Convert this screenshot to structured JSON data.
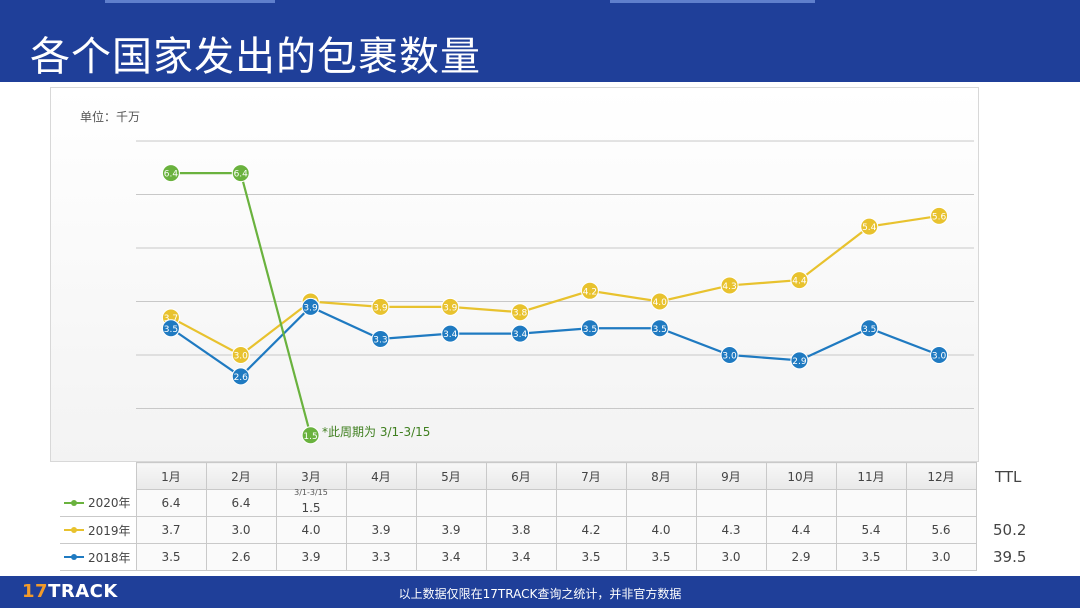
{
  "page": {
    "title": "各个国家发出的包裹数量",
    "unit_label": "单位：千万",
    "note": "*此周期为 3/1-3/15",
    "ttl_header": "TTL",
    "footer_text": "以上数据仅限在17TRACK查询之统计，并非官方数据",
    "logo_prefix": "17",
    "logo_suffix": "TRACK"
  },
  "chart_data": {
    "type": "line",
    "categories": [
      "1月",
      "2月",
      "3月",
      "4月",
      "5月",
      "6月",
      "7月",
      "8月",
      "9月",
      "10月",
      "11月",
      "12月"
    ],
    "ylim": [
      1.0,
      7.0
    ],
    "grid": true,
    "legend_placement": "table-left",
    "series": [
      {
        "name": "2020年",
        "color": "#6ab23e",
        "values": [
          6.4,
          6.4,
          1.5,
          null,
          null,
          null,
          null,
          null,
          null,
          null,
          null,
          null
        ],
        "labels": [
          "6.4",
          "6.4",
          "1.5",
          "",
          "",
          "",
          "",
          "",
          "",
          "",
          "",
          ""
        ],
        "total": ""
      },
      {
        "name": "2019年",
        "color": "#e8c22e",
        "values": [
          3.7,
          3.0,
          4.0,
          3.9,
          3.9,
          3.8,
          4.2,
          4.0,
          4.3,
          4.4,
          5.4,
          5.6
        ],
        "labels": [
          "3.7",
          "3.0",
          "4.0",
          "3.9",
          "3.9",
          "3.8",
          "4.2",
          "4.0",
          "4.3",
          "4.4",
          "5.4",
          "5.6"
        ],
        "total": "50.2"
      },
      {
        "name": "2018年",
        "color": "#1f7ac1",
        "values": [
          3.5,
          2.6,
          3.9,
          3.3,
          3.4,
          3.4,
          3.5,
          3.5,
          3.0,
          2.9,
          3.5,
          3.0
        ],
        "labels": [
          "3.5",
          "2.6",
          "3.9",
          "3.3",
          "3.4",
          "3.4",
          "3.5",
          "3.5",
          "3.0",
          "2.9",
          "3.5",
          "3.0"
        ],
        "total": "39.5"
      }
    ],
    "table_note_march": "3/1-3/15"
  }
}
